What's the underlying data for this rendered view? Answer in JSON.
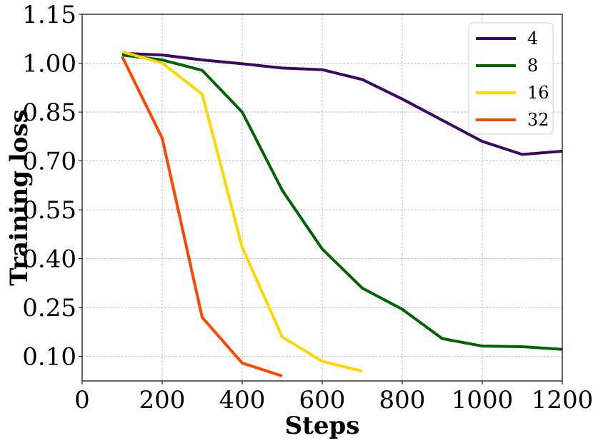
{
  "chart_data": {
    "type": "line",
    "xlabel": "Steps",
    "ylabel": "Training loss",
    "xlim": [
      0,
      1200
    ],
    "ylim": [
      0.025,
      1.15
    ],
    "xticks": [
      0,
      200,
      400,
      600,
      800,
      1000,
      1200
    ],
    "yticks": [
      0.1,
      0.25,
      0.4,
      0.55,
      0.7,
      0.85,
      1.0,
      1.15
    ],
    "xtick_labels": [
      "0",
      "200",
      "400",
      "600",
      "800",
      "1000",
      "1200"
    ],
    "ytick_labels": [
      "0.10",
      "0.25",
      "0.40",
      "0.55",
      "0.70",
      "0.85",
      "1.00",
      "1.15"
    ],
    "grid": true,
    "legend_position": "top-right",
    "series": [
      {
        "name": "4",
        "color": "#3b0a5e",
        "x": [
          100,
          200,
          300,
          400,
          500,
          600,
          700,
          800,
          900,
          1000,
          1100,
          1200
        ],
        "y": [
          1.03,
          1.025,
          1.01,
          0.998,
          0.985,
          0.98,
          0.95,
          0.89,
          0.825,
          0.76,
          0.72,
          0.73
        ]
      },
      {
        "name": "8",
        "color": "#006400",
        "x": [
          100,
          200,
          300,
          400,
          500,
          600,
          700,
          800,
          900,
          1000,
          1100,
          1200
        ],
        "y": [
          1.025,
          1.01,
          0.978,
          0.85,
          0.61,
          0.43,
          0.31,
          0.245,
          0.155,
          0.132,
          0.13,
          0.122
        ]
      },
      {
        "name": "16",
        "color": "#ffd700",
        "x": [
          100,
          200,
          300,
          400,
          500,
          600,
          700
        ],
        "y": [
          1.035,
          1.0,
          0.905,
          0.435,
          0.16,
          0.085,
          0.055
        ]
      },
      {
        "name": "32",
        "color": "#ff4500",
        "x": [
          100,
          200,
          300,
          400,
          500
        ],
        "y": [
          1.02,
          0.77,
          0.22,
          0.08,
          0.04
        ]
      }
    ]
  }
}
